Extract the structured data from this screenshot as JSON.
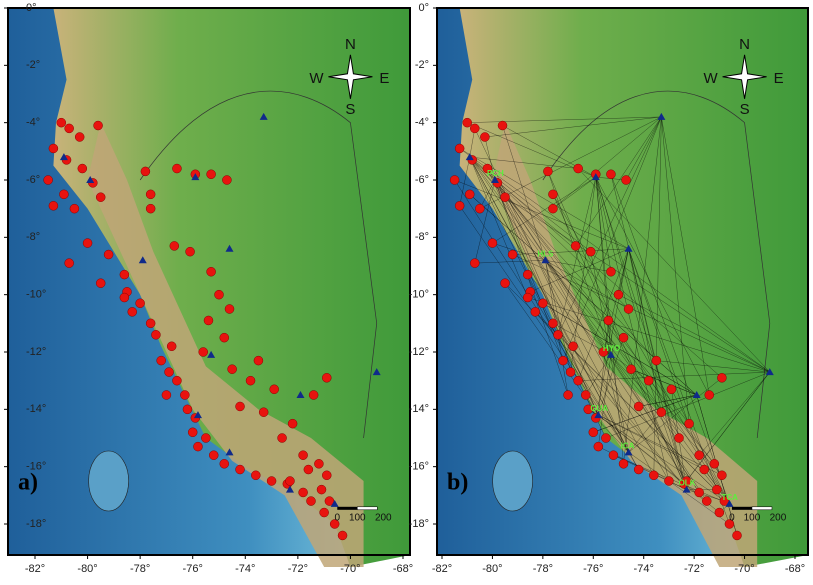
{
  "panels": [
    {
      "label": "a)",
      "lat_labels": [
        "0°",
        "-2°",
        "-4°",
        "-6°",
        "-8°",
        "-10°",
        "-12°",
        "-14°",
        "-16°",
        "-18°"
      ],
      "lon_labels": [
        "-82°",
        "-80°",
        "-78°",
        "-76°",
        "-74°",
        "-72°",
        "-70°",
        "-68°"
      ],
      "compass": [
        "N",
        "S",
        "W",
        "E"
      ],
      "scale": [
        "0",
        "100",
        "200"
      ]
    },
    {
      "label": "b)",
      "lat_labels": [
        "0°",
        "-2°",
        "-4°",
        "-6°",
        "-8°",
        "-10°",
        "-12°",
        "-14°",
        "-16°",
        "-18°"
      ],
      "lon_labels": [
        "-82°",
        "-80°",
        "-78°",
        "-76°",
        "-74°",
        "-72°",
        "-70°",
        "-68°"
      ],
      "compass": [
        "N",
        "S",
        "W",
        "E"
      ],
      "scale": [
        "0",
        "100",
        "200"
      ],
      "stations": [
        "PCH",
        "HLS",
        "HYO",
        "GUA",
        "ICA",
        "OLK",
        "TCA"
      ]
    }
  ]
}
